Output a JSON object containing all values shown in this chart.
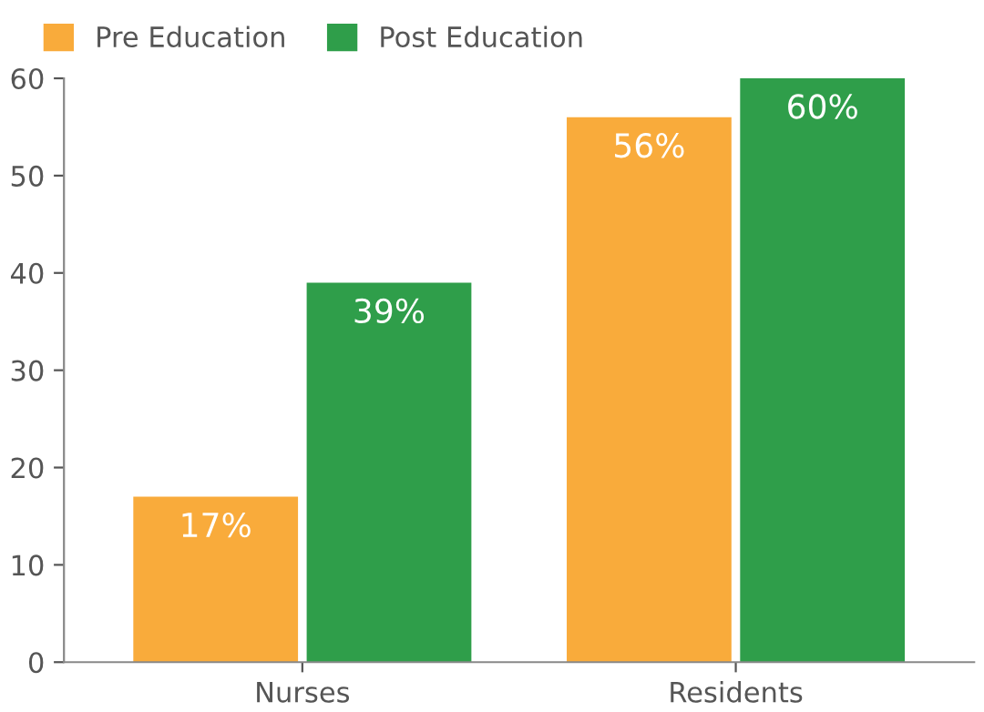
{
  "chart_data": {
    "type": "bar",
    "categories": [
      "Nurses",
      "Residents"
    ],
    "series": [
      {
        "name": "Pre Education",
        "color": "#f9ab3b",
        "values": [
          17,
          56
        ],
        "value_labels": [
          "17%",
          "56%"
        ]
      },
      {
        "name": "Post Education",
        "color": "#2f9e4a",
        "values": [
          39,
          60
        ],
        "value_labels": [
          "39%",
          "60%"
        ]
      }
    ],
    "ylim": [
      0,
      60
    ],
    "yticks": [
      0,
      10,
      20,
      30,
      40,
      50,
      60
    ],
    "grid": false,
    "legend": "top left"
  }
}
